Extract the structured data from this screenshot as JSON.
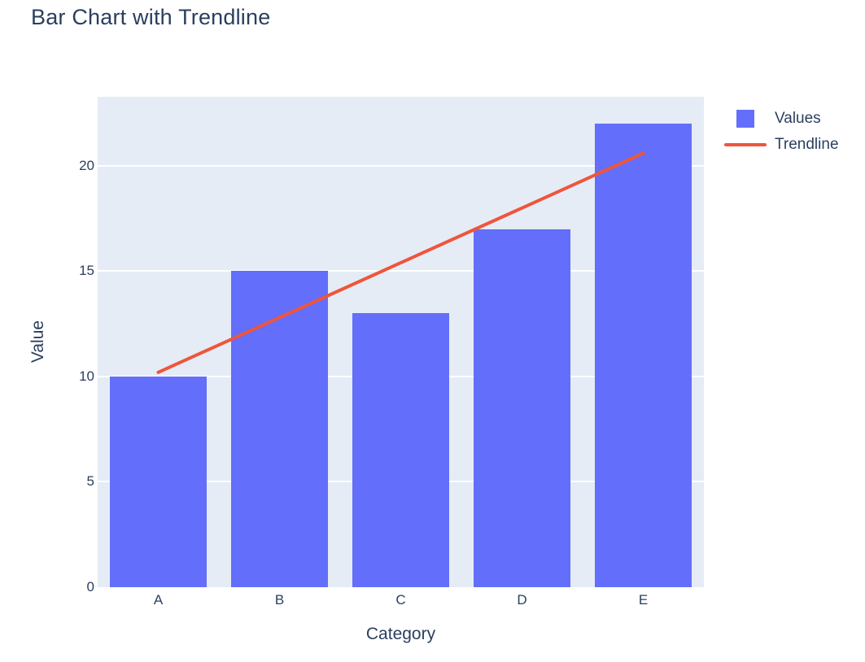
{
  "chart_data": {
    "type": "bar",
    "title": "Bar Chart with Trendline",
    "xlabel": "Category",
    "ylabel": "Value",
    "categories": [
      "A",
      "B",
      "C",
      "D",
      "E"
    ],
    "series": [
      {
        "name": "Values",
        "type": "bar",
        "color": "#636EFA",
        "values": [
          10,
          15,
          13,
          17,
          22
        ]
      },
      {
        "name": "Trendline",
        "type": "line",
        "color": "#EF553B",
        "values": [
          10.2,
          12.8,
          15.4,
          18.0,
          20.6
        ]
      }
    ],
    "ylim": [
      0,
      23.28
    ],
    "yticks": [
      0,
      5,
      10,
      15,
      20
    ],
    "grid": true,
    "gridline_color": "#FFFFFF",
    "plot_bg": "#E5ECF6",
    "text_color": "#2A3F5F",
    "legend_position": "top-right"
  }
}
